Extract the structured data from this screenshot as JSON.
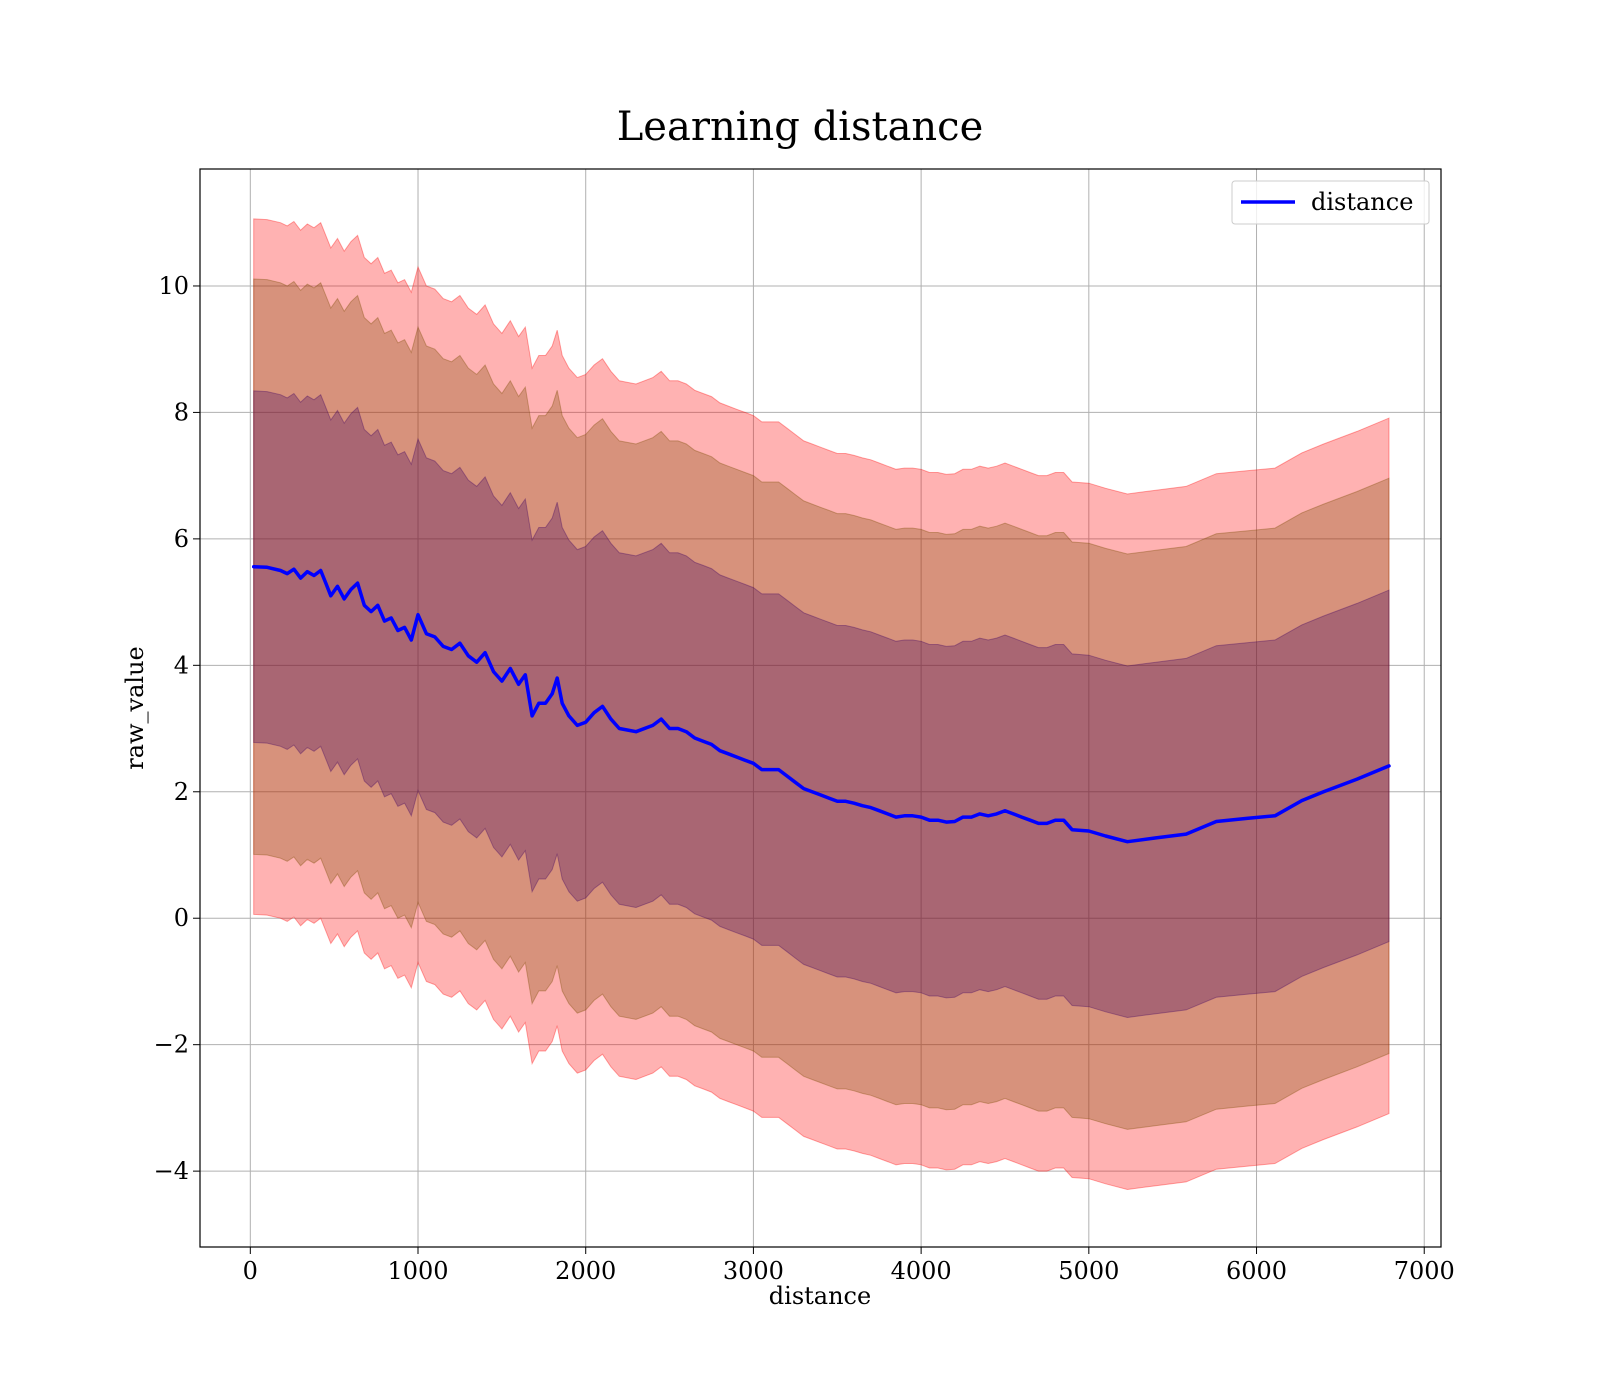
{
  "chart_data": {
    "type": "line",
    "title": "Learning distance",
    "xlabel": "distance",
    "ylabel": "raw_value",
    "xlim": [
      -300,
      7100
    ],
    "ylim": [
      -5.2,
      11.85
    ],
    "xticks": [
      0,
      1000,
      2000,
      3000,
      4000,
      5000,
      6000,
      7000
    ],
    "yticks": [
      -4,
      -2,
      0,
      2,
      4,
      6,
      8,
      10
    ],
    "xtick_labels": [
      "0",
      "1000",
      "2000",
      "3000",
      "4000",
      "5000",
      "6000",
      "7000"
    ],
    "ytick_labels": [
      "−4",
      "−2",
      "0",
      "2",
      "4",
      "6",
      "8",
      "10"
    ],
    "grid": true,
    "legend_position": "top-right",
    "series": [
      {
        "name": "distance",
        "color": "#0000ff",
        "x": [
          20,
          100,
          180,
          220,
          260,
          300,
          340,
          380,
          420,
          450,
          480,
          520,
          560,
          600,
          640,
          680,
          720,
          760,
          800,
          840,
          880,
          920,
          960,
          1000,
          1050,
          1100,
          1150,
          1200,
          1250,
          1300,
          1350,
          1400,
          1450,
          1500,
          1550,
          1600,
          1640,
          1680,
          1720,
          1760,
          1800,
          1830,
          1860,
          1900,
          1950,
          2000,
          2050,
          2100,
          2150,
          2200,
          2300,
          2400,
          2450,
          2500,
          2550,
          2600,
          2650,
          2700,
          2750,
          2800,
          2850,
          2900,
          2950,
          3000,
          3050,
          3100,
          3150,
          3200,
          3250,
          3300,
          3350,
          3400,
          3450,
          3500,
          3550,
          3600,
          3650,
          3700,
          3750,
          3800,
          3850,
          3900,
          3950,
          4000,
          4050,
          4100,
          4150,
          4200,
          4250,
          4300,
          4350,
          4400,
          4450,
          4500,
          4550,
          4600,
          4650,
          4700,
          4750,
          4800,
          4850,
          4900,
          5000,
          5100,
          5230,
          5400,
          5580,
          5760,
          5950,
          6110,
          6270,
          6400,
          6600,
          6790
        ],
        "values": [
          5.56,
          5.55,
          5.5,
          5.45,
          5.52,
          5.38,
          5.48,
          5.42,
          5.5,
          5.3,
          5.1,
          5.25,
          5.05,
          5.2,
          5.3,
          4.95,
          4.85,
          4.95,
          4.7,
          4.75,
          4.55,
          4.6,
          4.4,
          4.8,
          4.5,
          4.45,
          4.3,
          4.25,
          4.35,
          4.15,
          4.05,
          4.2,
          3.9,
          3.75,
          3.95,
          3.7,
          3.85,
          3.2,
          3.4,
          3.4,
          3.55,
          3.8,
          3.4,
          3.2,
          3.05,
          3.1,
          3.25,
          3.35,
          3.15,
          3.0,
          2.95,
          3.05,
          3.15,
          3.0,
          3.0,
          2.95,
          2.85,
          2.8,
          2.75,
          2.65,
          2.6,
          2.55,
          2.5,
          2.45,
          2.35,
          2.35,
          2.35,
          2.25,
          2.15,
          2.05,
          2.0,
          1.95,
          1.9,
          1.85,
          1.85,
          1.82,
          1.78,
          1.75,
          1.7,
          1.65,
          1.6,
          1.62,
          1.62,
          1.6,
          1.55,
          1.55,
          1.52,
          1.53,
          1.6,
          1.6,
          1.65,
          1.62,
          1.65,
          1.7,
          1.65,
          1.6,
          1.55,
          1.5,
          1.5,
          1.55,
          1.55,
          1.4,
          1.38,
          1.3,
          1.21,
          1.27,
          1.33,
          1.53,
          1.58,
          1.62,
          1.86,
          2.0,
          2.2,
          2.41
        ],
        "line_width": 3.5
      }
    ],
    "bands": [
      {
        "color": "#ff0000",
        "opacity": 0.3,
        "half_width": 5.5
      },
      {
        "color": "#7a4a00",
        "opacity": 0.3,
        "half_width": 4.55
      },
      {
        "color": "#400060",
        "opacity": 0.3,
        "half_width": 2.78
      }
    ]
  }
}
